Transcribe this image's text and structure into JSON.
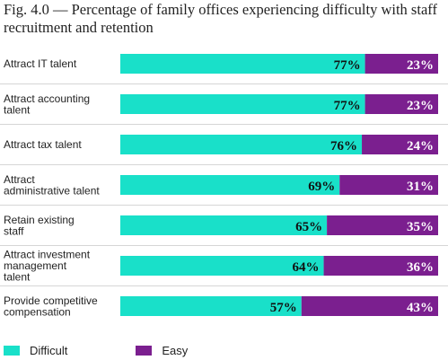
{
  "title": "Fig. 4.0 — Percentage of family offices experiencing difficulty with staff recruitment and retention",
  "colors": {
    "difficult": "#19e0c9",
    "easy": "#7b1f8f",
    "divider": "#d6d6d6"
  },
  "chart_data": {
    "type": "bar",
    "orientation": "horizontal",
    "stacked": true,
    "normalized": true,
    "title": "Fig. 4.0 — Percentage of family offices experiencing difficulty with staff recruitment and retention",
    "categories": [
      "Attract IT talent",
      "Attract accounting talent",
      "Attract tax talent",
      "Attract administrative talent",
      "Retain existing staff",
      "Attract investment management talent",
      "Provide competitive compensation"
    ],
    "series": [
      {
        "name": "Difficult",
        "values": [
          77,
          77,
          76,
          69,
          65,
          64,
          57
        ],
        "labels": [
          "77%",
          "77%",
          "76%",
          "69%",
          "65%",
          "64%",
          "57%"
        ]
      },
      {
        "name": "Easy",
        "values": [
          23,
          23,
          24,
          31,
          35,
          36,
          43
        ],
        "labels": [
          "23%",
          "23%",
          "24%",
          "31%",
          "35%",
          "36%",
          "43%"
        ]
      }
    ],
    "xlim": [
      0,
      100
    ],
    "legend": "bottom-left",
    "grid": false
  }
}
